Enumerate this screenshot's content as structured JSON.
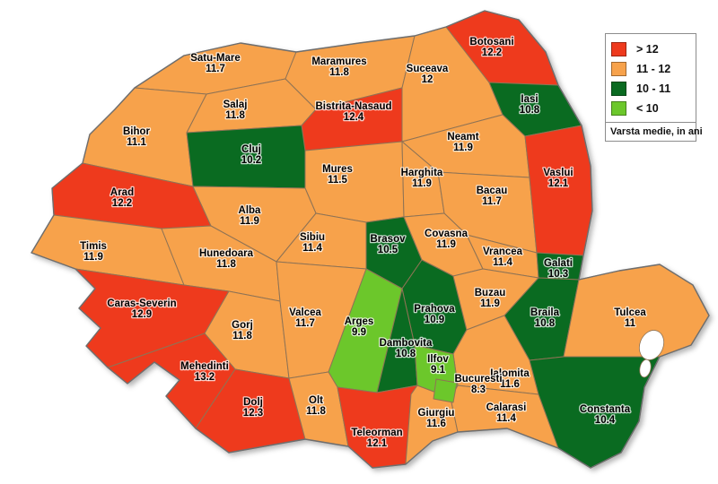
{
  "legend": {
    "caption": "Varsta medie, in ani",
    "items": [
      {
        "label": "> 12",
        "color": "#ee3a1d"
      },
      {
        "label": "11 - 12",
        "color": "#f7a24b"
      },
      {
        "label": "10 - 11",
        "color": "#0a6b21"
      },
      {
        "label": "< 10",
        "color": "#6cc72b"
      }
    ]
  },
  "map": {
    "counties": [
      {
        "id": "satu-mare",
        "name": "Satu-Mare",
        "value": "11.7",
        "bucket": "11 - 12"
      },
      {
        "id": "maramures",
        "name": "Maramures",
        "value": "11.8",
        "bucket": "11 - 12"
      },
      {
        "id": "suceava",
        "name": "Suceava",
        "value": "12",
        "bucket": "11 - 12"
      },
      {
        "id": "botosani",
        "name": "Botosani",
        "value": "12.2",
        "bucket": "> 12"
      },
      {
        "id": "iasi",
        "name": "Iasi",
        "value": "10.8",
        "bucket": "10 - 11"
      },
      {
        "id": "salaj",
        "name": "Salaj",
        "value": "11.8",
        "bucket": "11 - 12"
      },
      {
        "id": "bistrita-nasaud",
        "name": "Bistrita-Nasaud",
        "value": "12.4",
        "bucket": "> 12"
      },
      {
        "id": "neamt",
        "name": "Neamt",
        "value": "11.9",
        "bucket": "11 - 12"
      },
      {
        "id": "bihor",
        "name": "Bihor",
        "value": "11.1",
        "bucket": "11 - 12"
      },
      {
        "id": "cluj",
        "name": "Cluj",
        "value": "10.2",
        "bucket": "10 - 11"
      },
      {
        "id": "mures",
        "name": "Mures",
        "value": "11.5",
        "bucket": "11 - 12"
      },
      {
        "id": "harghita",
        "name": "Harghita",
        "value": "11.9",
        "bucket": "11 - 12"
      },
      {
        "id": "bacau",
        "name": "Bacau",
        "value": "11.7",
        "bucket": "11 - 12"
      },
      {
        "id": "vaslui",
        "name": "Vaslui",
        "value": "12.1",
        "bucket": "> 12"
      },
      {
        "id": "arad",
        "name": "Arad",
        "value": "12.2",
        "bucket": "> 12"
      },
      {
        "id": "alba",
        "name": "Alba",
        "value": "11.9",
        "bucket": "11 - 12"
      },
      {
        "id": "timis",
        "name": "Timis",
        "value": "11.9",
        "bucket": "11 - 12"
      },
      {
        "id": "hunedoara",
        "name": "Hunedoara",
        "value": "11.8",
        "bucket": "11 - 12"
      },
      {
        "id": "sibiu",
        "name": "Sibiu",
        "value": "11.4",
        "bucket": "11 - 12"
      },
      {
        "id": "brasov",
        "name": "Brasov",
        "value": "10.5",
        "bucket": "10 - 11"
      },
      {
        "id": "covasna",
        "name": "Covasna",
        "value": "11.9",
        "bucket": "11 - 12"
      },
      {
        "id": "vrancea",
        "name": "Vrancea",
        "value": "11.4",
        "bucket": "11 - 12"
      },
      {
        "id": "galati",
        "name": "Galati",
        "value": "10.3",
        "bucket": "10 - 11"
      },
      {
        "id": "caras-severin",
        "name": "Caras-Severin",
        "value": "12.9",
        "bucket": "> 12"
      },
      {
        "id": "gorj",
        "name": "Gorj",
        "value": "11.8",
        "bucket": "11 - 12"
      },
      {
        "id": "valcea",
        "name": "Valcea",
        "value": "11.7",
        "bucket": "11 - 12"
      },
      {
        "id": "arges",
        "name": "Arges",
        "value": "9.9",
        "bucket": "< 10"
      },
      {
        "id": "prahova",
        "name": "Prahova",
        "value": "10.9",
        "bucket": "10 - 11"
      },
      {
        "id": "dambovita",
        "name": "Dambovita",
        "value": "10.8",
        "bucket": "10 - 11"
      },
      {
        "id": "buzau",
        "name": "Buzau",
        "value": "11.9",
        "bucket": "11 - 12"
      },
      {
        "id": "braila",
        "name": "Braila",
        "value": "10.8",
        "bucket": "10 - 11"
      },
      {
        "id": "tulcea",
        "name": "Tulcea",
        "value": "11",
        "bucket": "11 - 12"
      },
      {
        "id": "mehedinti",
        "name": "Mehedinti",
        "value": "13.2",
        "bucket": "> 12"
      },
      {
        "id": "dolj",
        "name": "Dolj",
        "value": "12.3",
        "bucket": "> 12"
      },
      {
        "id": "olt",
        "name": "Olt",
        "value": "11.8",
        "bucket": "11 - 12"
      },
      {
        "id": "teleorman",
        "name": "Teleorman",
        "value": "12.1",
        "bucket": "> 12"
      },
      {
        "id": "giurgiu",
        "name": "Giurgiu",
        "value": "11.6",
        "bucket": "11 - 12"
      },
      {
        "id": "ialomita",
        "name": "Ialomita",
        "value": "11.6",
        "bucket": "11 - 12"
      },
      {
        "id": "calarasi",
        "name": "Calarasi",
        "value": "11.4",
        "bucket": "11 - 12"
      },
      {
        "id": "constanta",
        "name": "Constanta",
        "value": "10.4",
        "bucket": "10 - 11"
      },
      {
        "id": "ilfov",
        "name": "Ilfov",
        "value": "9.1",
        "bucket": "< 10"
      },
      {
        "id": "bucuresti",
        "name": "Bucuresti",
        "value": "8.3",
        "bucket": "< 10"
      }
    ]
  }
}
